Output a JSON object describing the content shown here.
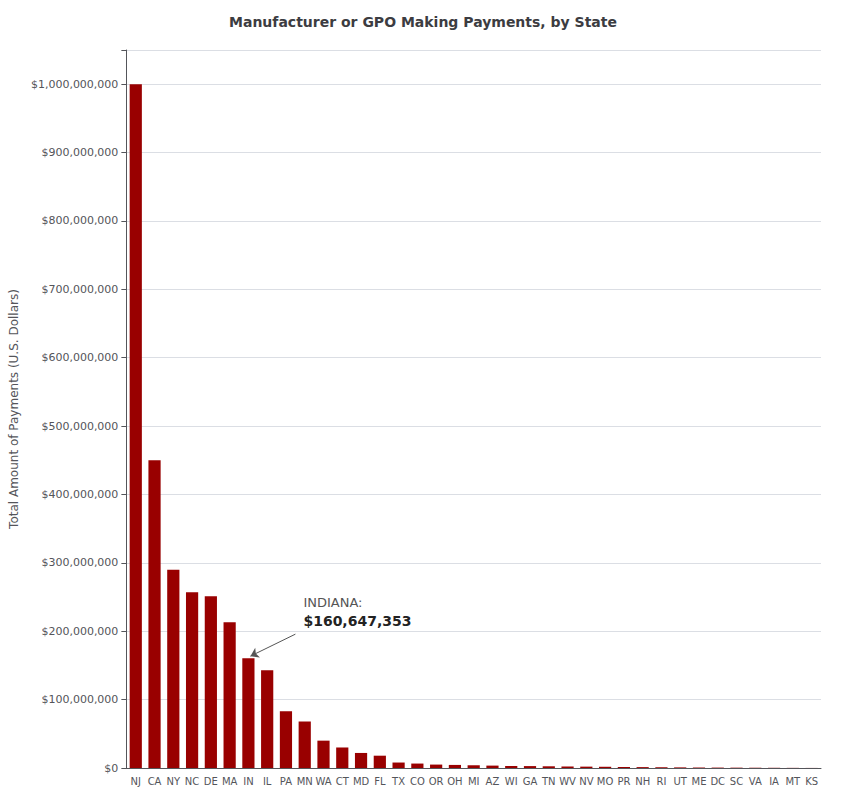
{
  "chart_data": {
    "type": "bar",
    "title": "Manufacturer or GPO Making Payments, by State",
    "ylabel": "Total Amount of Payments (U.S. Dollars)",
    "categories": [
      "NJ",
      "CA",
      "NY",
      "NC",
      "DE",
      "MA",
      "IN",
      "IL",
      "PA",
      "MN",
      "WA",
      "CT",
      "MD",
      "FL",
      "TX",
      "CO",
      "OR",
      "OH",
      "MI",
      "AZ",
      "WI",
      "GA",
      "TN",
      "WV",
      "NV",
      "MO",
      "PR",
      "NH",
      "RI",
      "UT",
      "ME",
      "DC",
      "SC",
      "VA",
      "IA",
      "MT",
      "KS"
    ],
    "values": [
      1000000000,
      450000000,
      290000000,
      257000000,
      251000000,
      213000000,
      160647353,
      143000000,
      83000000,
      68000000,
      40000000,
      30000000,
      22000000,
      18000000,
      8000000,
      6500000,
      5000000,
      4500000,
      4000000,
      3500000,
      3000000,
      2800000,
      2500000,
      2200000,
      2000000,
      1800000,
      1500000,
      1300000,
      1100000,
      900000,
      700000,
      600000,
      500000,
      400000,
      300000,
      200000,
      100000
    ],
    "color": "#990000",
    "ylim": [
      0,
      1050000000
    ],
    "yticks": [
      {
        "value": 0,
        "label": "$0"
      },
      {
        "value": 100000000,
        "label": "$100,000,000"
      },
      {
        "value": 200000000,
        "label": "$200,000,000"
      },
      {
        "value": 300000000,
        "label": "$300,000,000"
      },
      {
        "value": 400000000,
        "label": "$400,000,000"
      },
      {
        "value": 500000000,
        "label": "$500,000,000"
      },
      {
        "value": 600000000,
        "label": "$600,000,000"
      },
      {
        "value": 700000000,
        "label": "$700,000,000"
      },
      {
        "value": 800000000,
        "label": "$800,000,000"
      },
      {
        "value": 900000000,
        "label": "$900,000,000"
      },
      {
        "value": 1000000000,
        "label": "$1,000,000,000"
      }
    ],
    "grid": true,
    "annotation": {
      "lines": [
        "INDIANA:",
        "$160,647,353"
      ],
      "category": "IN",
      "value": 160647353
    }
  }
}
